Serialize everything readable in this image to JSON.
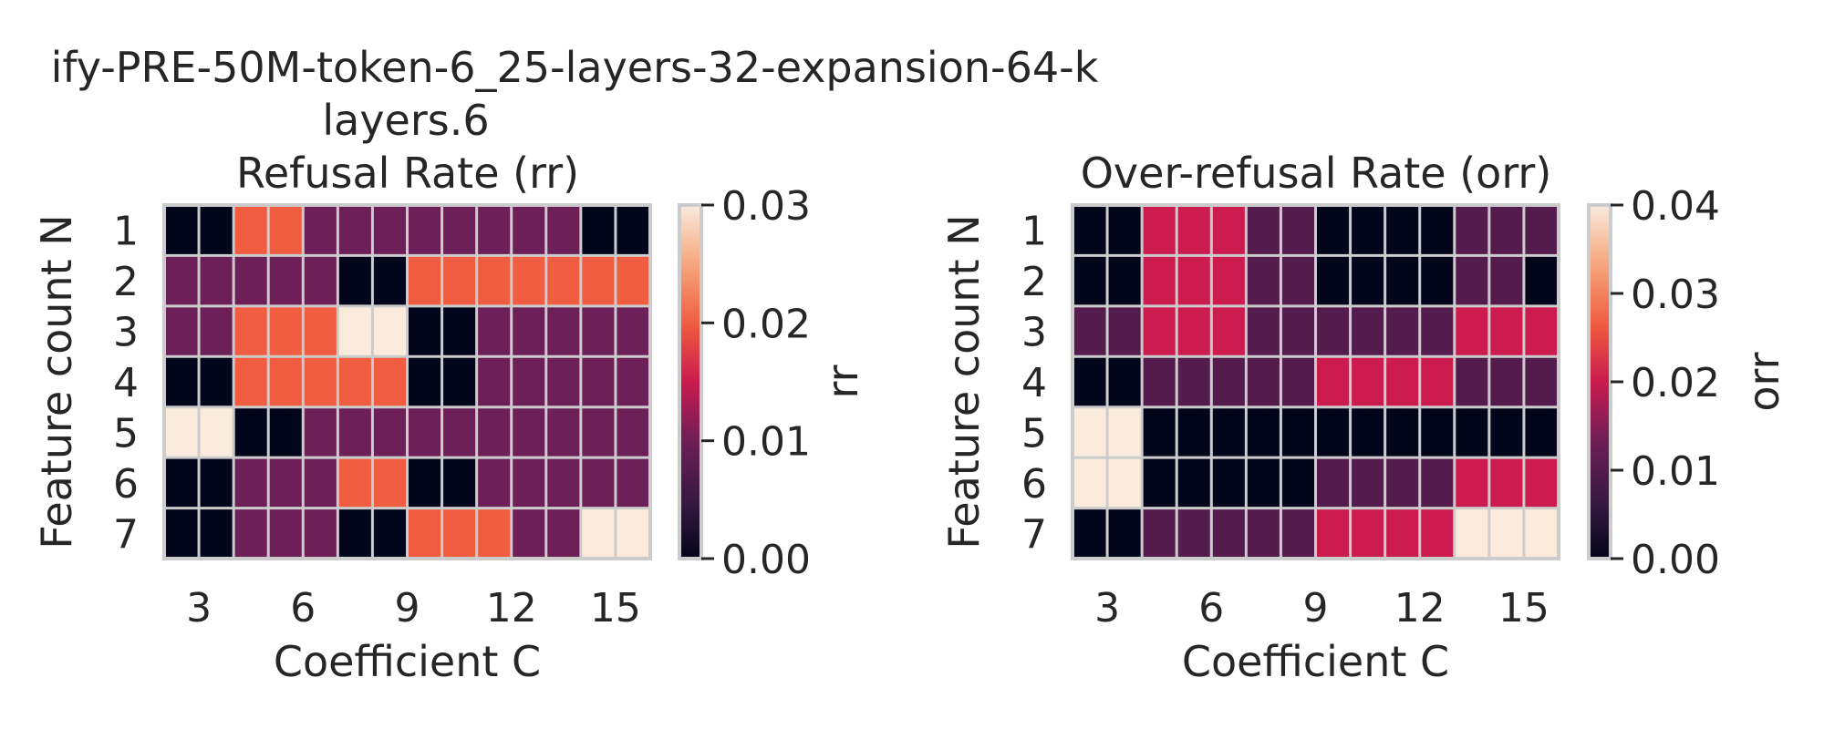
{
  "figure": {
    "suptitle_line1": "ify-PRE-50M-token-6_25-layers-32-expansion-64-k",
    "suptitle_line2": "layers.6"
  },
  "chart_data": [
    {
      "type": "heatmap",
      "title": "Refusal Rate (rr)",
      "xlabel": "Coefficient C",
      "ylabel": "Feature count N",
      "colorbar_label": "rr",
      "x": [
        2,
        3,
        4,
        5,
        6,
        7,
        8,
        9,
        10,
        11,
        12,
        13,
        14,
        15,
        16
      ],
      "x_ticks": [
        3,
        6,
        9,
        12,
        15
      ],
      "y": [
        1,
        2,
        3,
        4,
        5,
        6,
        7
      ],
      "vmin": 0.0,
      "vmax": 0.03,
      "colorbar_ticks": [
        "0.00",
        "0.01",
        "0.02",
        "0.03"
      ],
      "grid": true,
      "z": [
        [
          0,
          0,
          0.02,
          0.02,
          0.01,
          0.01,
          0.01,
          0.01,
          0.01,
          0.01,
          0.01,
          0.01,
          0,
          0
        ],
        [
          0.01,
          0.01,
          0.01,
          0.01,
          0.01,
          0,
          0,
          0.02,
          0.02,
          0.02,
          0.02,
          0.02,
          0.02,
          0.02
        ],
        [
          0.01,
          0.01,
          0.02,
          0.02,
          0.02,
          0.03,
          0.03,
          0,
          0,
          0.01,
          0.01,
          0.01,
          0.01,
          0.01
        ],
        [
          0,
          0,
          0.02,
          0.02,
          0.02,
          0.02,
          0.02,
          0,
          0,
          0.01,
          0.01,
          0.01,
          0.01,
          0.01
        ],
        [
          0.03,
          0.03,
          0,
          0,
          0.01,
          0.01,
          0.01,
          0.01,
          0.01,
          0.01,
          0.01,
          0.01,
          0.01,
          0.01
        ],
        [
          0,
          0,
          0.01,
          0.01,
          0.01,
          0.02,
          0.02,
          0,
          0,
          0.01,
          0.01,
          0.01,
          0.01,
          0.01
        ],
        [
          0,
          0,
          0.01,
          0.01,
          0.01,
          0,
          0,
          0.02,
          0.02,
          0.02,
          0.01,
          0.01,
          0.03,
          0.03
        ]
      ]
    },
    {
      "type": "heatmap",
      "title": "Over-refusal Rate (orr)",
      "xlabel": "Coefficient C",
      "ylabel": "Feature count N",
      "colorbar_label": "orr",
      "x": [
        2,
        3,
        4,
        5,
        6,
        7,
        8,
        9,
        10,
        11,
        12,
        13,
        14,
        15,
        16
      ],
      "x_ticks": [
        3,
        6,
        9,
        12,
        15
      ],
      "y": [
        1,
        2,
        3,
        4,
        5,
        6,
        7
      ],
      "vmin": 0.0,
      "vmax": 0.04,
      "colorbar_ticks": [
        "0.00",
        "0.01",
        "0.02",
        "0.03",
        "0.04"
      ],
      "grid": true,
      "z": [
        [
          0,
          0,
          0.02,
          0.02,
          0.02,
          0.01,
          0.01,
          0,
          0,
          0,
          0,
          0.01,
          0.01,
          0.01
        ],
        [
          0,
          0,
          0.02,
          0.02,
          0.02,
          0.01,
          0.01,
          0,
          0,
          0,
          0,
          0.01,
          0.01,
          0
        ],
        [
          0.01,
          0.01,
          0.02,
          0.02,
          0.02,
          0.01,
          0.01,
          0.01,
          0.01,
          0.01,
          0.01,
          0.02,
          0.02,
          0.02
        ],
        [
          0,
          0,
          0.01,
          0.01,
          0.01,
          0.01,
          0.01,
          0.02,
          0.02,
          0.02,
          0.02,
          0.01,
          0.01,
          0.01
        ],
        [
          0.04,
          0.04,
          0,
          0,
          0,
          0,
          0,
          0,
          0,
          0,
          0,
          0,
          0,
          0
        ],
        [
          0.04,
          0.04,
          0,
          0,
          0,
          0,
          0,
          0.01,
          0.01,
          0.01,
          0.01,
          0.02,
          0.02,
          0.02
        ],
        [
          0,
          0,
          0.01,
          0.01,
          0.01,
          0.01,
          0.01,
          0.02,
          0.02,
          0.02,
          0.02,
          0.04,
          0.04,
          0.04
        ]
      ]
    }
  ]
}
